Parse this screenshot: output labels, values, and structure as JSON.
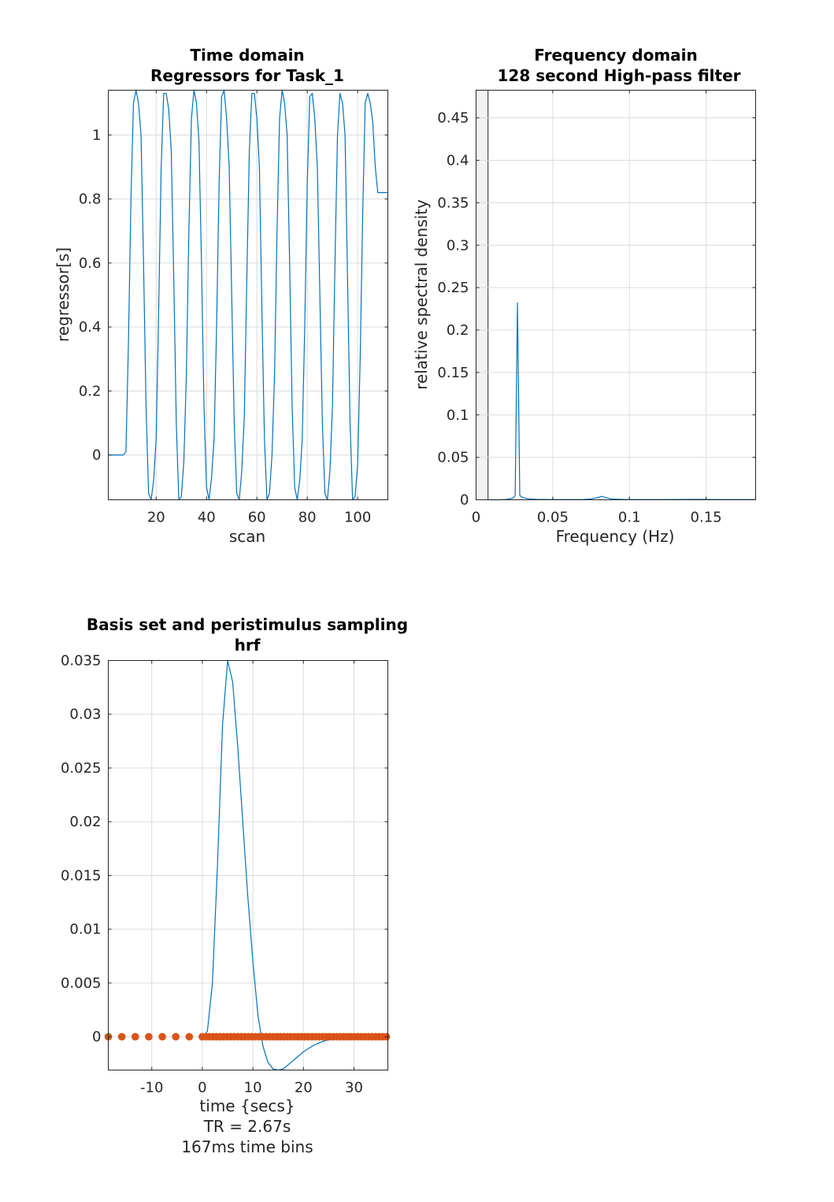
{
  "colors": {
    "series_blue": "#0072BD",
    "series_orange": "#D95319",
    "filter_band": "#f2f2f2"
  },
  "chart_data": [
    {
      "id": "time",
      "type": "line",
      "title": [
        "Time domain",
        "Regressors for Task_1"
      ],
      "xlabel": [
        "scan"
      ],
      "ylabel": "regressor[s]",
      "xlim": [
        1,
        112
      ],
      "ylim": [
        -0.14,
        1.14
      ],
      "xticks": [
        20,
        40,
        60,
        80,
        100
      ],
      "yticks": [
        0,
        0.2,
        0.4,
        0.6,
        0.8,
        1
      ],
      "ytick_labels": [
        "0",
        "0.2",
        "0.4",
        "0.6",
        "0.8",
        "1"
      ],
      "grid": true,
      "series": [
        {
          "color": "#0072BD",
          "x": [
            1,
            7,
            8,
            9,
            10,
            11,
            12,
            13,
            14,
            15,
            16,
            17,
            18,
            19,
            20,
            21,
            22,
            23,
            24,
            25,
            26,
            27,
            28,
            29,
            30,
            31,
            32,
            33,
            34,
            35,
            36,
            37,
            38,
            39,
            40,
            41,
            42,
            43,
            44,
            45,
            46,
            47,
            48,
            49,
            50,
            51,
            52,
            53,
            54,
            55,
            56,
            57,
            58,
            59,
            60,
            61,
            62,
            63,
            64,
            65,
            66,
            67,
            68,
            69,
            70,
            71,
            72,
            73,
            74,
            75,
            76,
            77,
            78,
            79,
            80,
            81,
            82,
            83,
            84,
            85,
            86,
            87,
            88,
            89,
            90,
            91,
            92,
            93,
            94,
            95,
            96,
            97,
            98,
            99,
            100,
            101,
            102,
            103,
            104,
            105,
            106,
            107,
            108,
            109,
            110,
            111,
            112
          ],
          "y": [
            0,
            0,
            0.01,
            0.35,
            0.8,
            1.1,
            1.14,
            1.1,
            1.0,
            0.6,
            0.15,
            -0.12,
            -0.14,
            -0.08,
            0.05,
            0.45,
            0.9,
            1.13,
            1.13,
            1.08,
            0.95,
            0.55,
            0.1,
            -0.14,
            -0.13,
            -0.02,
            0.25,
            0.7,
            1.05,
            1.14,
            1.1,
            0.98,
            0.6,
            0.15,
            -0.1,
            -0.14,
            -0.07,
            0.05,
            0.4,
            0.85,
            1.12,
            1.14,
            1.05,
            0.9,
            0.5,
            0.1,
            -0.12,
            -0.14,
            -0.05,
            0.12,
            0.55,
            0.95,
            1.13,
            1.13,
            1.05,
            0.9,
            0.45,
            0.05,
            -0.14,
            -0.12,
            0.0,
            0.25,
            0.7,
            1.05,
            1.14,
            1.1,
            1.0,
            0.6,
            0.15,
            -0.1,
            -0.14,
            -0.08,
            0.05,
            0.4,
            0.85,
            1.12,
            1.13,
            1.05,
            0.9,
            0.5,
            0.1,
            -0.12,
            -0.14,
            -0.05,
            0.15,
            0.6,
            1.0,
            1.13,
            1.1,
            1.0,
            0.55,
            0.1,
            -0.14,
            -0.13,
            -0.03,
            0.3,
            0.75,
            1.1,
            1.13,
            1.1,
            1.04,
            0.9,
            0.82,
            0.82,
            0.82,
            0.82,
            0.82
          ]
        }
      ]
    },
    {
      "id": "freq",
      "type": "line",
      "title": [
        "Frequency domain",
        "128 second High-pass filter"
      ],
      "xlabel": [
        "Frequency (Hz)"
      ],
      "ylabel": "relative spectral density",
      "xlim": [
        0,
        0.1823
      ],
      "ylim": [
        0,
        0.4826
      ],
      "xticks": [
        0,
        0.05,
        0.1,
        0.15
      ],
      "xtick_labels": [
        "0",
        "0.05",
        "0.1",
        "0.15"
      ],
      "yticks": [
        0,
        0.05,
        0.1,
        0.15,
        0.2,
        0.25,
        0.3,
        0.35,
        0.4,
        0.45
      ],
      "ytick_labels": [
        "0",
        "0.05",
        "0.1",
        "0.15",
        "0.2",
        "0.25",
        "0.3",
        "0.35",
        "0.4",
        "0.45"
      ],
      "grid": true,
      "filter_cutoff": 0.0078125,
      "series": [
        {
          "color": "#0072BD",
          "x": [
            0.0078,
            0.01,
            0.015,
            0.02,
            0.024,
            0.0255,
            0.027,
            0.0285,
            0.03,
            0.032,
            0.035,
            0.04,
            0.05,
            0.06,
            0.07,
            0.075,
            0.08,
            0.082,
            0.084,
            0.088,
            0.095,
            0.1,
            0.12,
            0.14,
            0.16,
            0.1823
          ],
          "y": [
            0,
            0,
            0,
            0.0005,
            0.002,
            0.005,
            0.232,
            0.005,
            0.003,
            0.002,
            0.001,
            0.0005,
            0.0003,
            0.0002,
            0.0004,
            0.001,
            0.003,
            0.004,
            0.003,
            0.001,
            0.0005,
            0.0003,
            0.0003,
            0.0005,
            0.0003,
            0.0002
          ]
        }
      ]
    },
    {
      "id": "basis",
      "type": "line",
      "title": [
        "Basis set and peristimulus sampling",
        "hrf"
      ],
      "xlabel": [
        "time {secs}",
        "TR = 2.67s",
        "167ms time bins"
      ],
      "ylabel": "",
      "xlim": [
        -18.6,
        36.7
      ],
      "ylim": [
        -0.0031,
        0.035
      ],
      "xticks": [
        -10,
        0,
        10,
        20,
        30
      ],
      "xtick_labels": [
        "-10",
        "0",
        "10",
        "20",
        "30"
      ],
      "yticks": [
        0,
        0.005,
        0.01,
        0.015,
        0.02,
        0.025,
        0.03,
        0.035
      ],
      "ytick_labels": [
        "0",
        "0.005",
        "0.01",
        "0.015",
        "0.02",
        "0.025",
        "0.03",
        "0.035"
      ],
      "grid": true,
      "series": [
        {
          "color": "#0072BD",
          "kind": "line",
          "x": [
            0,
            1,
            2,
            3,
            4,
            5,
            6,
            7,
            8,
            9,
            10,
            11,
            12,
            13,
            14,
            15,
            16,
            17,
            18,
            19,
            20,
            22,
            24,
            26,
            28,
            30,
            32
          ],
          "y": [
            0,
            0.0005,
            0.005,
            0.016,
            0.029,
            0.035,
            0.033,
            0.027,
            0.02,
            0.013,
            0.007,
            0.002,
            -0.0009,
            -0.0024,
            -0.003,
            -0.0031,
            -0.003,
            -0.0026,
            -0.0022,
            -0.0018,
            -0.0014,
            -0.0008,
            -0.0004,
            -0.0002,
            -0.0001,
            0,
            0
          ]
        }
      ],
      "samples": {
        "color": "#D95319",
        "kind": "scatter",
        "y": 0,
        "x_sparse": [
          -18.6,
          -15.93,
          -13.26,
          -10.59,
          -7.92,
          -5.25,
          -2.58
        ],
        "dense_start": 0,
        "dense_end": 36.7,
        "dense_step": 0.7
      }
    }
  ]
}
